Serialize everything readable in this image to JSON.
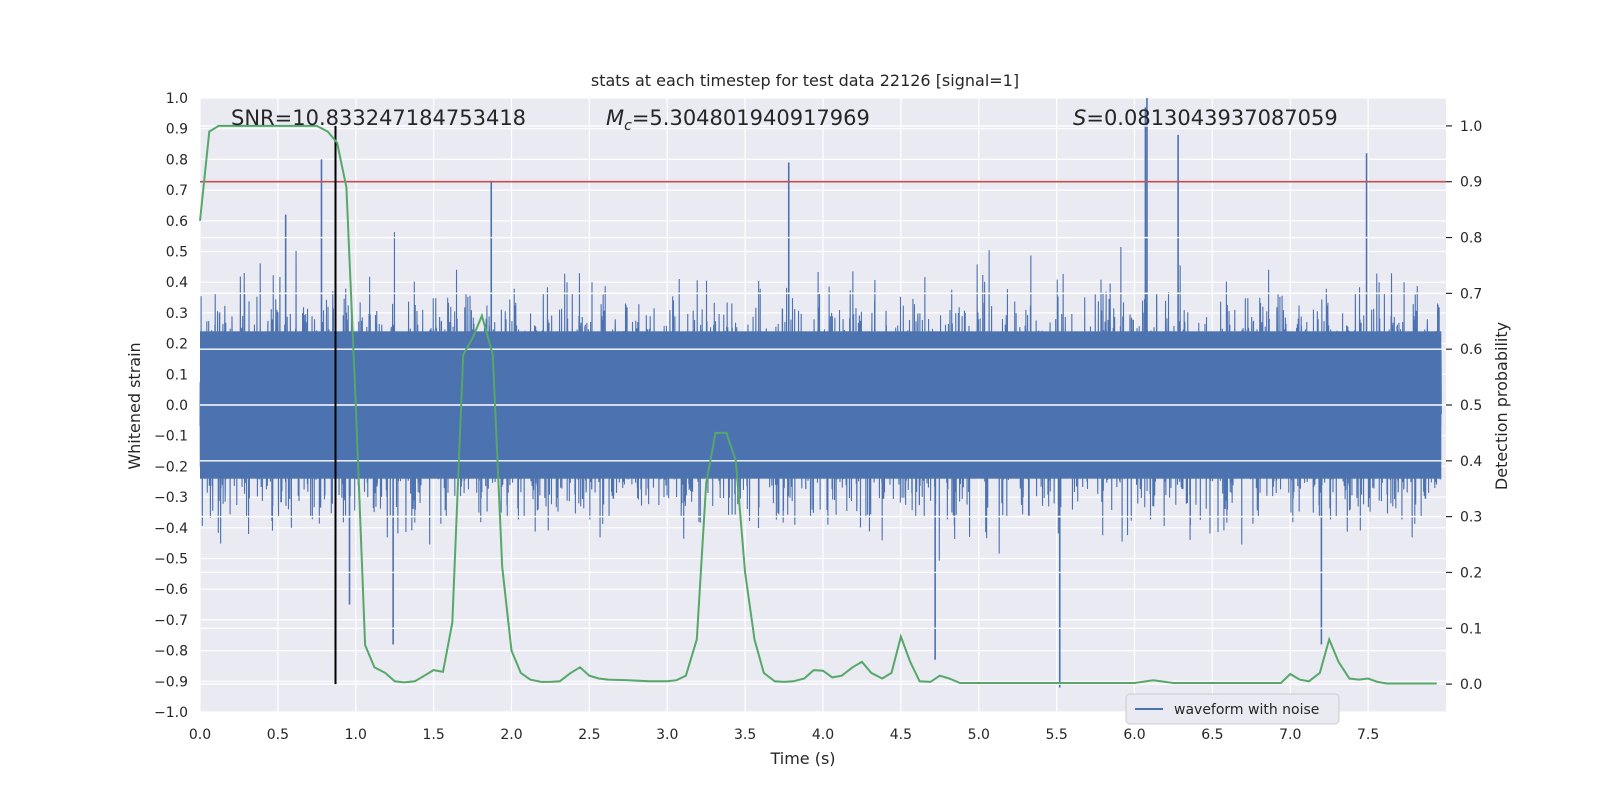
{
  "chart_data": {
    "type": "line",
    "title": "stats at each timestep for test data 22126 [signal=1]",
    "xlabel": "Time (s)",
    "ylabel": "Whitened strain",
    "y2label": "Detection probability",
    "xlim": [
      0.0,
      8.0
    ],
    "ylim": [
      -1.0,
      1.0
    ],
    "y2lim": [
      -0.05,
      1.05
    ],
    "xticks": [
      "0.0",
      "0.5",
      "1.0",
      "1.5",
      "2.0",
      "2.5",
      "3.0",
      "3.5",
      "4.0",
      "4.5",
      "5.0",
      "5.5",
      "6.0",
      "6.5",
      "7.0",
      "7.5"
    ],
    "yticks": [
      "−1.0",
      "−0.9",
      "−0.8",
      "−0.7",
      "−0.6",
      "−0.5",
      "−0.4",
      "−0.3",
      "−0.2",
      "−0.1",
      "0.0",
      "0.1",
      "0.2",
      "0.3",
      "0.4",
      "0.5",
      "0.6",
      "0.7",
      "0.8",
      "0.9",
      "1.0"
    ],
    "y2ticks": [
      "0.0",
      "0.1",
      "0.2",
      "0.3",
      "0.4",
      "0.5",
      "0.6",
      "0.7",
      "0.8",
      "0.9",
      "1.0"
    ],
    "annotations": {
      "snr": "SNR=10.833247184753418",
      "mc_symbol": "M",
      "mc_sub": "c",
      "mc_value": "=5.304801940917969",
      "s_symbol": "S",
      "s_value": "=0.0813043937087059"
    },
    "threshold_y2": 0.9,
    "marker_time": 0.87,
    "legend": [
      "waveform with noise"
    ],
    "series": [
      {
        "name": "waveform with noise",
        "color": "#4c72b0",
        "envelope": "noisy whitened strain sampled at ~1024 Hz, amplitude mostly within ±0.5 with spikes up to ~1.0",
        "spikes": [
          [
            0.78,
            0.8
          ],
          [
            0.55,
            0.62
          ],
          [
            1.87,
            0.73
          ],
          [
            3.78,
            0.79
          ],
          [
            5.52,
            -0.92
          ],
          [
            6.07,
            0.97
          ],
          [
            6.08,
            1.0
          ],
          [
            6.28,
            0.88
          ],
          [
            7.2,
            -0.78
          ],
          [
            7.49,
            0.82
          ],
          [
            4.72,
            -0.83
          ],
          [
            1.24,
            -0.78
          ],
          [
            0.96,
            -0.65
          ]
        ]
      },
      {
        "name": "detection probability",
        "color": "#55a868",
        "axis": "right",
        "x": [
          0.0,
          0.06,
          0.12,
          0.25,
          0.5,
          0.75,
          0.82,
          0.88,
          0.94,
          1.0,
          1.06,
          1.12,
          1.19,
          1.25,
          1.31,
          1.38,
          1.44,
          1.5,
          1.56,
          1.62,
          1.69,
          1.75,
          1.81,
          1.88,
          1.94,
          2.0,
          2.06,
          2.12,
          2.19,
          2.25,
          2.31,
          2.38,
          2.44,
          2.5,
          2.56,
          2.62,
          2.75,
          2.88,
          3.0,
          3.06,
          3.12,
          3.19,
          3.25,
          3.31,
          3.38,
          3.44,
          3.5,
          3.56,
          3.62,
          3.69,
          3.75,
          3.81,
          3.88,
          3.94,
          4.0,
          4.06,
          4.12,
          4.19,
          4.25,
          4.31,
          4.38,
          4.44,
          4.5,
          4.56,
          4.62,
          4.69,
          4.75,
          4.81,
          4.88,
          5.0,
          5.12,
          5.25,
          5.5,
          5.75,
          6.0,
          6.12,
          6.25,
          6.5,
          6.75,
          6.94,
          7.0,
          7.06,
          7.12,
          7.19,
          7.25,
          7.31,
          7.38,
          7.44,
          7.5,
          7.56,
          7.62,
          7.94
        ],
        "y": [
          0.83,
          0.99,
          1.0,
          1.0,
          1.0,
          1.0,
          0.99,
          0.97,
          0.89,
          0.5,
          0.07,
          0.03,
          0.02,
          0.005,
          0.003,
          0.005,
          0.015,
          0.025,
          0.022,
          0.11,
          0.59,
          0.62,
          0.66,
          0.59,
          0.21,
          0.06,
          0.02,
          0.008,
          0.004,
          0.004,
          0.005,
          0.02,
          0.03,
          0.015,
          0.01,
          0.008,
          0.007,
          0.005,
          0.005,
          0.007,
          0.015,
          0.08,
          0.36,
          0.45,
          0.45,
          0.4,
          0.2,
          0.08,
          0.02,
          0.005,
          0.004,
          0.005,
          0.01,
          0.025,
          0.024,
          0.012,
          0.015,
          0.03,
          0.04,
          0.02,
          0.01,
          0.02,
          0.085,
          0.04,
          0.005,
          0.004,
          0.015,
          0.01,
          0.002,
          0.002,
          0.002,
          0.002,
          0.002,
          0.002,
          0.002,
          0.007,
          0.002,
          0.002,
          0.002,
          0.002,
          0.018,
          0.008,
          0.005,
          0.02,
          0.08,
          0.04,
          0.01,
          0.008,
          0.01,
          0.004,
          0.001,
          0.001
        ]
      }
    ]
  }
}
